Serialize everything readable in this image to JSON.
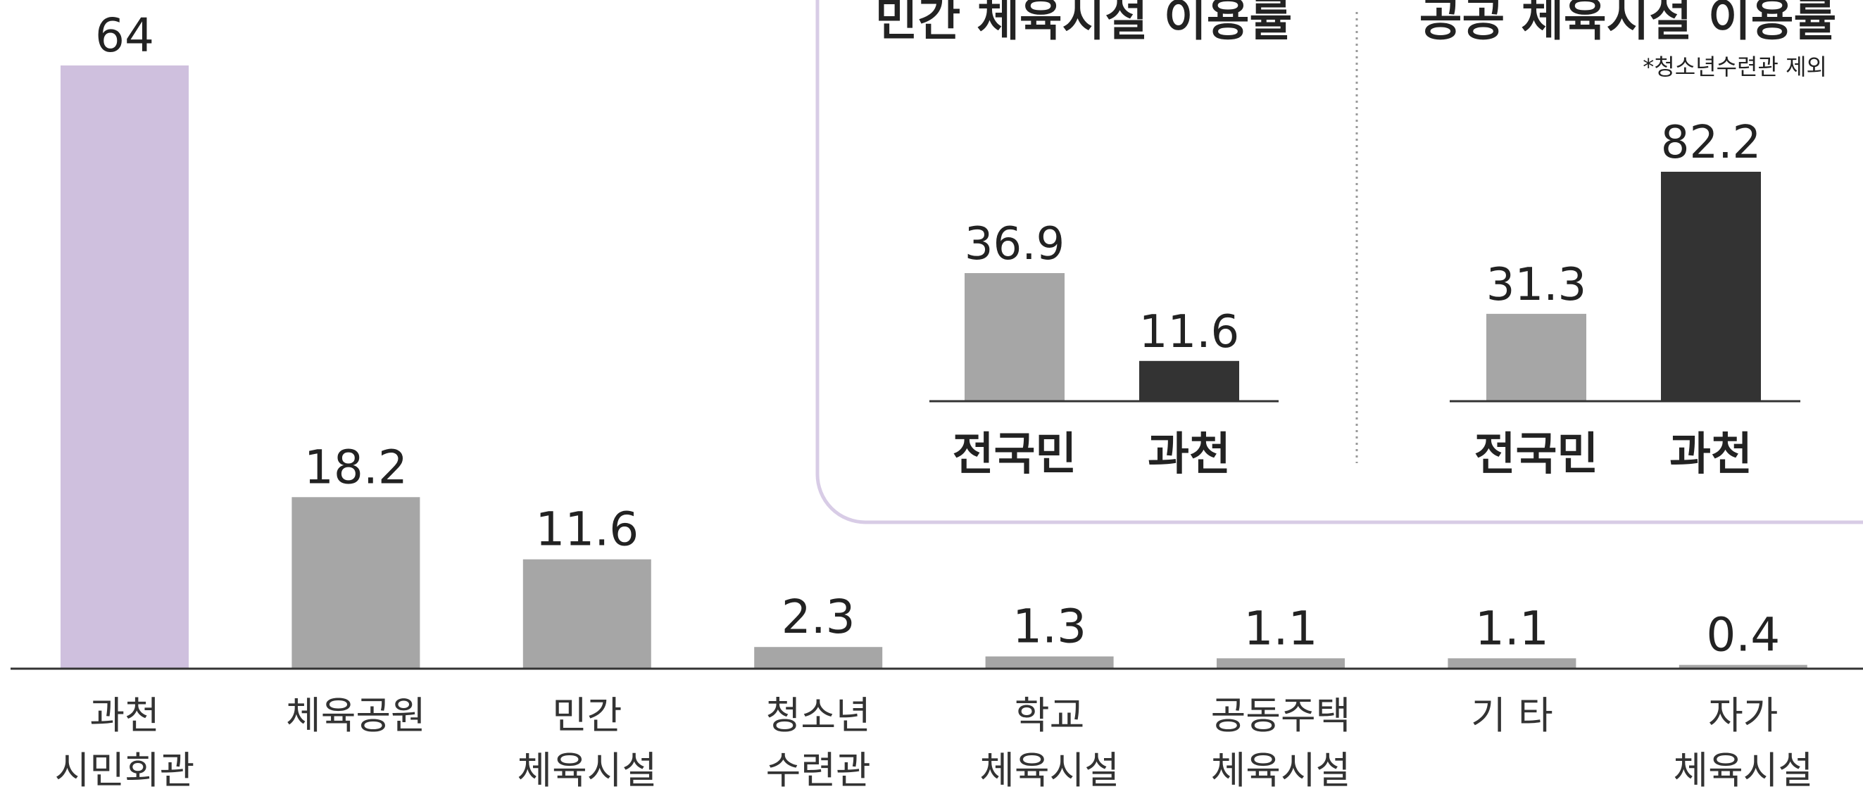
{
  "chart_data": [
    {
      "type": "bar",
      "categories": [
        "과천\n시민회관",
        "체육공원",
        "민간\n체육시설",
        "청소년\n수련관",
        "학교\n체육시설",
        "공동주택\n체육시설",
        "기 타",
        "자가\n체육시설"
      ],
      "values": [
        64,
        18.2,
        11.6,
        2.3,
        1.3,
        1.1,
        1.1,
        0.4
      ],
      "colors": [
        "#cfc0de",
        "#a6a6a6",
        "#a6a6a6",
        "#a6a6a6",
        "#a6a6a6",
        "#a6a6a6",
        "#a6a6a6",
        "#a6a6a6"
      ]
    },
    {
      "type": "bar",
      "title": "민간 체육시설 이용률",
      "categories": [
        "전국민",
        "과천"
      ],
      "values": [
        36.9,
        11.6
      ],
      "colors": [
        "#a6a6a6",
        "#333333"
      ]
    },
    {
      "type": "bar",
      "title": "공공 체육시설 이용률",
      "note": "*청소년수련관 제외",
      "categories": [
        "전국민",
        "과천"
      ],
      "values": [
        31.3,
        82.2
      ],
      "colors": [
        "#a6a6a6",
        "#333333"
      ]
    }
  ]
}
